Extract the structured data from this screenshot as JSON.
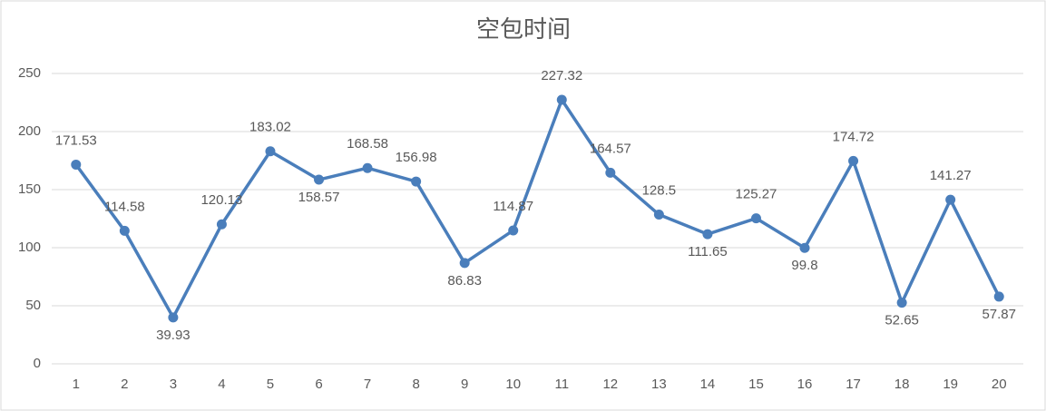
{
  "chart_data": {
    "type": "line",
    "title": "空包时间",
    "categories": [
      "1",
      "2",
      "3",
      "4",
      "5",
      "6",
      "7",
      "8",
      "9",
      "10",
      "11",
      "12",
      "13",
      "14",
      "15",
      "16",
      "17",
      "18",
      "19",
      "20"
    ],
    "series": [
      {
        "name": "空包时间",
        "color": "#4a7ebb",
        "values": [
          171.53,
          114.58,
          39.93,
          120.13,
          183.02,
          158.57,
          168.58,
          156.98,
          86.83,
          114.87,
          227.32,
          164.57,
          128.5,
          111.65,
          125.27,
          99.8,
          174.72,
          52.65,
          141.27,
          57.87
        ]
      }
    ],
    "ylim": [
      0,
      250
    ],
    "yticks": [
      0,
      50,
      100,
      150,
      200,
      250
    ],
    "grid": true
  }
}
